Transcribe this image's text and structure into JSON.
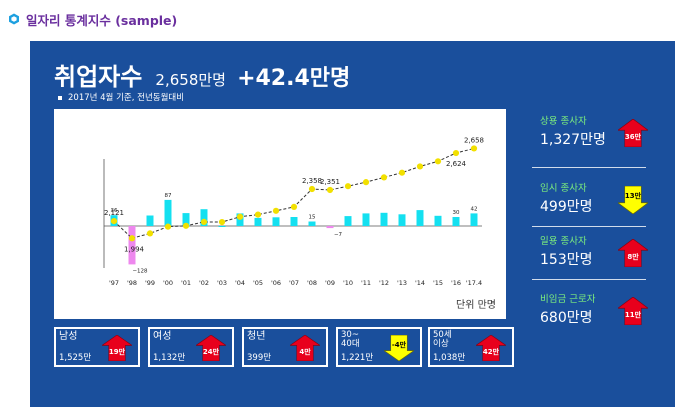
{
  "header": {
    "title": "일자리 통계지수 (sample)"
  },
  "headline": {
    "title": "취업자수",
    "total": "2,658만명",
    "change": "+42.4만명"
  },
  "subnote": "2017년 4월 기준, 전년동월대비",
  "chart_unit": "단위 만명",
  "chart_data": {
    "type": "line",
    "categories": [
      "'97",
      "'98",
      "'99",
      "'00",
      "'01",
      "'02",
      "'03",
      "'04",
      "'05",
      "'06",
      "'07",
      "'08",
      "'09",
      "'10",
      "'11",
      "'12",
      "'13",
      "'14",
      "'15",
      "'16",
      "'17.4"
    ],
    "series": [
      {
        "values": [
          2121,
          1994,
          2030,
          2080,
          2086,
          2115,
          2114,
          2153,
          2169,
          2197,
          2226,
          2358,
          2351,
          2379,
          2409,
          2444,
          2479,
          2525,
          2563,
          2624,
          2658
        ]
      },
      {
        "values": [
          36,
          -128,
          35,
          87,
          43,
          56,
          0,
          42,
          27,
          29,
          30,
          15,
          -7,
          33,
          42,
          44,
          39,
          53,
          34,
          30,
          42
        ]
      }
    ],
    "line_labels": [
      {
        "index": 0,
        "text": "2,121"
      },
      {
        "index": 1,
        "text": "1,994"
      },
      {
        "index": 11,
        "text": "2,358"
      },
      {
        "index": 12,
        "text": "2,351"
      },
      {
        "index": 19,
        "text": "2,624"
      },
      {
        "index": 20,
        "text": "2,658"
      }
    ],
    "bar_labels": [
      {
        "index": 0,
        "text": "36"
      },
      {
        "index": 1,
        "text": "−128"
      },
      {
        "index": 3,
        "text": "87"
      },
      {
        "index": 11,
        "text": "15"
      },
      {
        "index": 12,
        "text": "−7"
      },
      {
        "index": 19,
        "text": "30"
      },
      {
        "index": 20,
        "text": "42"
      }
    ],
    "line_range": [
      1900,
      2750
    ],
    "bar_range": [
      -140,
      100
    ],
    "colors": {
      "line": "#333333",
      "point": "#f2e000",
      "bar_pos": "#14e0f0",
      "bar_neg": "#ee88ee"
    }
  },
  "categories": [
    {
      "name": "남성",
      "value": "1,525만",
      "badge": "19만",
      "dir": "up"
    },
    {
      "name": "여성",
      "value": "1,132만",
      "badge": "24만",
      "dir": "up"
    },
    {
      "name": "청년",
      "value": "399만",
      "badge": "4만",
      "dir": "up"
    },
    {
      "name": "30~\n40대",
      "value": "1,221만",
      "badge": "-4만",
      "dir": "down"
    },
    {
      "name": "50세\n이상",
      "value": "1,038만",
      "badge": "42만",
      "dir": "up"
    }
  ],
  "side": [
    {
      "name": "상용 종사자",
      "value": "1,327만명",
      "badge": "36만",
      "dir": "up"
    },
    {
      "name": "임시 종사자",
      "value": "499만명",
      "badge": "13만",
      "dir": "down"
    },
    {
      "name": "일용 종사자",
      "value": "153만명",
      "badge": "8만",
      "dir": "up"
    },
    {
      "name": "비임금 근로자",
      "value": "680만명",
      "badge": "11만",
      "dir": "up"
    }
  ],
  "colors": {
    "panel": "#1a4f9c",
    "title": "#6a2f9e",
    "up": "#e8001c",
    "down": "#ffff00",
    "side_label": "#7df07d"
  }
}
